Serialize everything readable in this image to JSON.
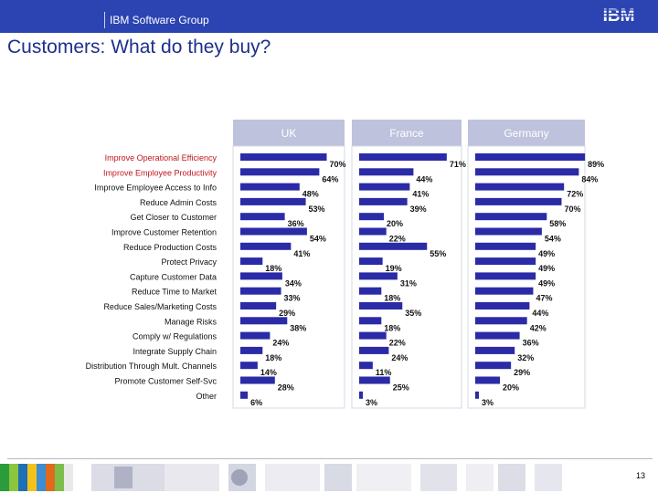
{
  "header": {
    "group": "IBM Software Group",
    "logo": "IBM"
  },
  "page": {
    "title": "Customers: What do they buy?",
    "number": "13"
  },
  "colors": {
    "bar": "#2b2ba7",
    "header_bg": "#2b44b2",
    "panel_bg": "#bfc2dc",
    "label_red": "#c0161d",
    "title": "#1e2f8c"
  },
  "chart_data": {
    "type": "bar",
    "orientation": "horizontal",
    "value_unit": "%",
    "categories": [
      "Improve Operational Efficiency",
      "Improve Employee Productivity",
      "Improve Employee Access to Info",
      "Reduce Admin Costs",
      "Get Closer to Customer",
      "Improve Customer Retention",
      "Reduce Production Costs",
      "Protect Privacy",
      "Capture Customer Data",
      "Reduce Time to Market",
      "Reduce Sales/Marketing Costs",
      "Manage Risks",
      "Comply w/ Regulations",
      "Integrate Supply Chain",
      "Distribution Through Mult. Channels",
      "Promote Customer Self-Svc",
      "Other"
    ],
    "highlighted_categories": [
      "Improve Operational Efficiency",
      "Improve Employee Productivity"
    ],
    "series": [
      {
        "name": "UK",
        "values": [
          70,
          64,
          48,
          53,
          36,
          54,
          41,
          18,
          34,
          33,
          29,
          38,
          24,
          18,
          14,
          28,
          6
        ]
      },
      {
        "name": "France",
        "values": [
          71,
          44,
          41,
          39,
          20,
          22,
          55,
          19,
          31,
          18,
          35,
          18,
          22,
          24,
          11,
          25,
          3
        ]
      },
      {
        "name": "Germany",
        "values": [
          89,
          84,
          72,
          70,
          58,
          54,
          49,
          49,
          49,
          47,
          44,
          42,
          36,
          32,
          29,
          20,
          3
        ]
      }
    ]
  }
}
